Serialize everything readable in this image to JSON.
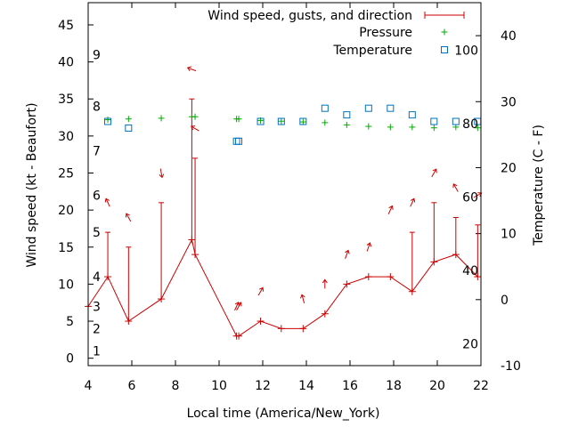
{
  "chart_data": {
    "type": "line",
    "xlabel": "Local time (America/New_York)",
    "ylabel_left": "Wind speed (kt - Beaufort)",
    "ylabel_right": "Temperature (C - F)",
    "xlim": [
      4,
      22
    ],
    "ylim_left": [
      -1,
      48
    ],
    "ylim_right": [
      -10,
      45
    ],
    "x_ticks": [
      "4",
      "6",
      "8",
      "10",
      "12",
      "14",
      "16",
      "18",
      "20",
      "22"
    ],
    "y_left_ticks": [
      "0",
      "5",
      "10",
      "15",
      "20",
      "25",
      "30",
      "35",
      "40",
      "45"
    ],
    "y_right_ticks": [
      "-10",
      "0",
      "10",
      "20",
      "30",
      "40"
    ],
    "beaufort_labels": [
      {
        "label": "1",
        "kt": 1
      },
      {
        "label": "2",
        "kt": 4
      },
      {
        "label": "3",
        "kt": 7
      },
      {
        "label": "4",
        "kt": 11
      },
      {
        "label": "5",
        "kt": 17
      },
      {
        "label": "6",
        "kt": 22
      },
      {
        "label": "7",
        "kt": 28
      },
      {
        "label": "8",
        "kt": 34
      },
      {
        "label": "9",
        "kt": 41
      }
    ],
    "fahrenheit_labels": [
      {
        "label": "20",
        "f": 20
      },
      {
        "label": "40",
        "f": 40
      },
      {
        "label": "60",
        "f": 60
      },
      {
        "label": "80",
        "f": 80
      },
      {
        "label": "100",
        "f": 100
      }
    ],
    "legend": {
      "placement": "top-right",
      "entries": [
        "Wind speed, gusts, and direction",
        "Pressure",
        "Temperature"
      ]
    },
    "colors": {
      "wind": "#cc0000",
      "pressure": "#00aa00",
      "temperature": "#0072bd",
      "axis": "#000000"
    },
    "series": [
      {
        "name": "Wind speed, gusts, and direction",
        "points": [
          {
            "x": 4.0,
            "y": 7
          },
          {
            "x": 4.9,
            "y": 11,
            "gust": 17
          },
          {
            "x": 5.85,
            "y": 5,
            "gust": 15
          },
          {
            "x": 7.35,
            "y": 8,
            "gust": 21
          },
          {
            "x": 8.75,
            "y": 16,
            "gust": 35
          },
          {
            "x": 8.9,
            "y": 14,
            "gust": 27
          },
          {
            "x": 10.8,
            "y": 3
          },
          {
            "x": 10.9,
            "y": 3
          },
          {
            "x": 11.9,
            "y": 5
          },
          {
            "x": 12.85,
            "y": 4
          },
          {
            "x": 13.85,
            "y": 4
          },
          {
            "x": 14.85,
            "y": 6
          },
          {
            "x": 15.85,
            "y": 10
          },
          {
            "x": 16.85,
            "y": 11
          },
          {
            "x": 17.85,
            "y": 11
          },
          {
            "x": 18.85,
            "y": 9,
            "gust": 17
          },
          {
            "x": 19.85,
            "y": 13,
            "gust": 21
          },
          {
            "x": 20.85,
            "y": 14,
            "gust": 19
          },
          {
            "x": 21.85,
            "y": 11,
            "gust": 18
          }
        ],
        "direction_arrows": [
          {
            "x": 4.9,
            "y": 21,
            "angle": 335
          },
          {
            "x": 5.85,
            "y": 19,
            "angle": 330
          },
          {
            "x": 7.35,
            "y": 25,
            "angle": 170
          },
          {
            "x": 8.75,
            "y": 39,
            "angle": 290
          },
          {
            "x": 8.9,
            "y": 31,
            "angle": 300
          },
          {
            "x": 10.8,
            "y": 7,
            "angle": 25
          },
          {
            "x": 10.9,
            "y": 7,
            "angle": 30
          },
          {
            "x": 11.9,
            "y": 9,
            "angle": 30
          },
          {
            "x": 13.85,
            "y": 8,
            "angle": 345
          },
          {
            "x": 14.85,
            "y": 10,
            "angle": 0
          },
          {
            "x": 15.85,
            "y": 14,
            "angle": 20
          },
          {
            "x": 16.85,
            "y": 15,
            "angle": 20
          },
          {
            "x": 17.85,
            "y": 20,
            "angle": 25
          },
          {
            "x": 18.85,
            "y": 21,
            "angle": 25
          },
          {
            "x": 19.85,
            "y": 25,
            "angle": 30
          },
          {
            "x": 20.85,
            "y": 23,
            "angle": 330
          },
          {
            "x": 21.85,
            "y": 22,
            "angle": 60
          }
        ]
      },
      {
        "name": "Pressure",
        "points": [
          {
            "x": 4.9,
            "y": 32.2
          },
          {
            "x": 5.85,
            "y": 32.3
          },
          {
            "x": 7.35,
            "y": 32.4
          },
          {
            "x": 8.75,
            "y": 32.6
          },
          {
            "x": 8.9,
            "y": 32.6
          },
          {
            "x": 10.8,
            "y": 32.3
          },
          {
            "x": 10.9,
            "y": 32.3
          },
          {
            "x": 11.9,
            "y": 32.1
          },
          {
            "x": 12.85,
            "y": 32.0
          },
          {
            "x": 13.85,
            "y": 31.9
          },
          {
            "x": 14.85,
            "y": 31.8
          },
          {
            "x": 15.85,
            "y": 31.5
          },
          {
            "x": 16.85,
            "y": 31.3
          },
          {
            "x": 17.85,
            "y": 31.2
          },
          {
            "x": 18.85,
            "y": 31.2
          },
          {
            "x": 19.85,
            "y": 31.1
          },
          {
            "x": 20.85,
            "y": 31.2
          },
          {
            "x": 21.85,
            "y": 31.1
          }
        ]
      },
      {
        "name": "Temperature",
        "points": [
          {
            "x": 4.9,
            "y": 27
          },
          {
            "x": 5.85,
            "y": 26
          },
          {
            "x": 10.8,
            "y": 24
          },
          {
            "x": 10.9,
            "y": 24
          },
          {
            "x": 11.9,
            "y": 27
          },
          {
            "x": 12.85,
            "y": 27
          },
          {
            "x": 13.85,
            "y": 27
          },
          {
            "x": 14.85,
            "y": 29
          },
          {
            "x": 15.85,
            "y": 28
          },
          {
            "x": 16.85,
            "y": 29
          },
          {
            "x": 17.85,
            "y": 29
          },
          {
            "x": 18.85,
            "y": 28
          },
          {
            "x": 19.85,
            "y": 27
          },
          {
            "x": 20.85,
            "y": 27
          },
          {
            "x": 21.85,
            "y": 27
          }
        ]
      }
    ]
  }
}
